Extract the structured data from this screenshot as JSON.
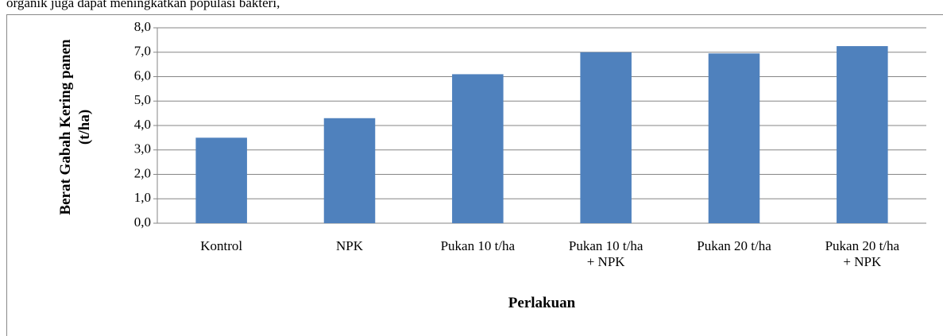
{
  "text_above": "organik juga dapat meningkatkan populasi bakteri,",
  "chart_data": {
    "type": "bar",
    "y_label": "Berat Gabah Kering panen\n(t/ha)",
    "x_label": "Perlakuan",
    "categories": [
      "Kontrol",
      "NPK",
      "Pukan 10 t/ha",
      "Pukan 10 t/ha\n+ NPK",
      "Pukan 20 t/ha",
      "Pukan 20 t/ha\n+ NPK"
    ],
    "values": [
      3.5,
      4.3,
      6.1,
      7.0,
      6.95,
      7.25
    ],
    "color": "#4f81bd",
    "ylim": [
      0,
      8
    ],
    "yticks": [
      {
        "value": 0,
        "label": "0,0"
      },
      {
        "value": 1,
        "label": "1,0"
      },
      {
        "value": 2,
        "label": "2,0"
      },
      {
        "value": 3,
        "label": "3,0"
      },
      {
        "value": 4,
        "label": "4,0"
      },
      {
        "value": 5,
        "label": "5,0"
      },
      {
        "value": 6,
        "label": "6,0"
      },
      {
        "value": 7,
        "label": "7,0"
      },
      {
        "value": 8,
        "label": "8,0"
      }
    ],
    "grid": true
  }
}
